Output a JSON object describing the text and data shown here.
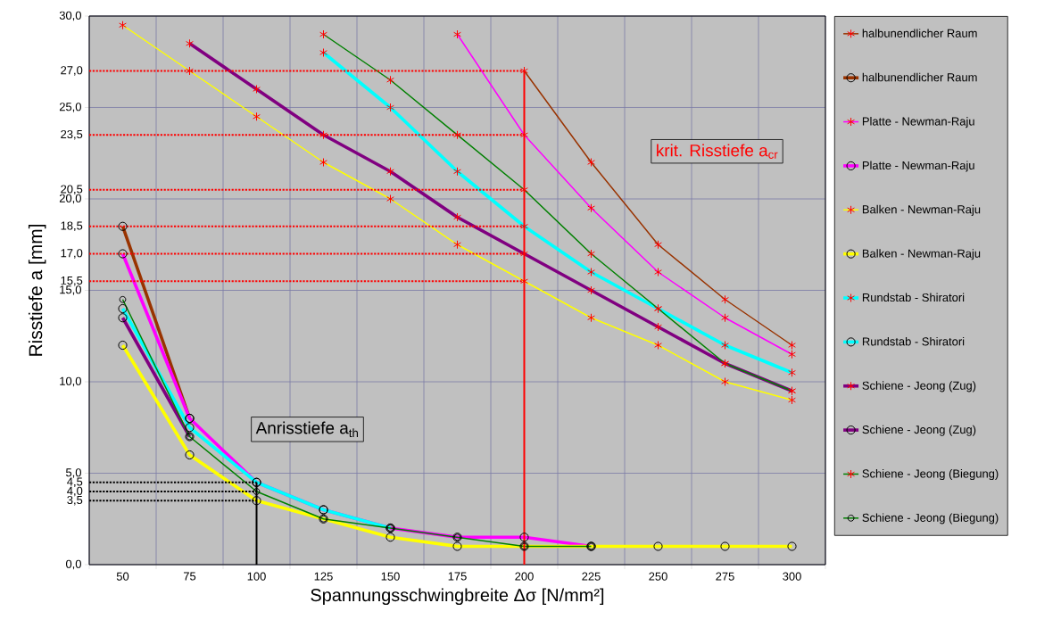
{
  "chart_data": {
    "type": "line",
    "xlabel": "Spannungsschwingbreite Δσ [N/mm²]",
    "ylabel": "Risstiefe a [mm]",
    "x": [
      50,
      75,
      100,
      125,
      150,
      175,
      200,
      225,
      250,
      275,
      300
    ],
    "xlim": [
      37.5,
      312.5
    ],
    "xticks": [
      50,
      75,
      100,
      125,
      150,
      175,
      200,
      225,
      250,
      275,
      300
    ],
    "ylim": [
      0,
      30
    ],
    "yticks": [
      {
        "value": 0,
        "label": "0,0"
      },
      {
        "value": 5,
        "label": "5,0"
      },
      {
        "value": 10,
        "label": "10,0"
      },
      {
        "value": 15,
        "label": "15,0"
      },
      {
        "value": 20,
        "label": "20,0"
      },
      {
        "value": 25,
        "label": "25,0"
      },
      {
        "value": 30,
        "label": "30,0"
      }
    ],
    "grid": true,
    "legend": "right",
    "series": [
      {
        "name": "halbunendlicher Raum",
        "color": "#993300",
        "marker": "cross",
        "values": [
          null,
          null,
          null,
          null,
          null,
          null,
          27.0,
          22.0,
          17.5,
          14.5,
          12.0
        ]
      },
      {
        "name": "halbunendlicher Raum",
        "color": "#993300",
        "marker": "circle",
        "values": [
          18.5,
          8.0,
          null,
          null,
          null,
          null,
          null,
          null,
          null,
          null,
          null
        ]
      },
      {
        "name": "Platte - Newman-Raju",
        "color": "#ff00ff",
        "marker": "cross",
        "values": [
          null,
          null,
          null,
          null,
          null,
          29.0,
          23.5,
          19.5,
          16.0,
          13.5,
          11.5
        ]
      },
      {
        "name": "Platte - Newman-Raju",
        "color": "#ff00ff",
        "marker": "circle",
        "values": [
          17.0,
          8.0,
          4.5,
          3.0,
          2.0,
          1.5,
          1.5,
          1.0,
          null,
          null,
          null
        ]
      },
      {
        "name": "Balken - Newman-Raju",
        "color": "#ffff00",
        "marker": "cross",
        "values": [
          29.5,
          27.0,
          24.5,
          22.0,
          20.0,
          17.5,
          15.5,
          13.5,
          12.0,
          10.0,
          9.0
        ]
      },
      {
        "name": "Balken - Newman-Raju",
        "color": "#ffff00",
        "marker": "circle",
        "values": [
          12.0,
          6.0,
          3.5,
          2.5,
          1.5,
          1.0,
          1.0,
          1.0,
          1.0,
          1.0,
          1.0
        ]
      },
      {
        "name": "Rundstab - Shiratori",
        "color": "#00ffff",
        "marker": "cross",
        "values": [
          null,
          null,
          null,
          28.0,
          25.0,
          21.5,
          18.5,
          16.0,
          14.0,
          12.0,
          10.5
        ]
      },
      {
        "name": "Rundstab - Shiratori",
        "color": "#00ffff",
        "marker": "circle",
        "values": [
          14.0,
          7.5,
          4.5,
          3.0,
          2.0,
          null,
          null,
          null,
          null,
          null,
          null
        ]
      },
      {
        "name": "Schiene - Jeong (Zug)",
        "color": "#800080",
        "marker": "cross",
        "values": [
          null,
          28.5,
          26.0,
          23.5,
          21.5,
          19.0,
          17.0,
          15.0,
          13.0,
          11.0,
          9.5
        ]
      },
      {
        "name": "Schiene - Jeong (Zug)",
        "color": "#800080",
        "marker": "circle",
        "values": [
          13.5,
          7.0,
          null,
          null,
          null,
          null,
          null,
          null,
          null,
          null,
          null
        ]
      },
      {
        "name": "Schiene - Jeong (Biegung)",
        "color": "#008000",
        "marker": "cross",
        "values": [
          null,
          null,
          null,
          29.0,
          26.5,
          23.5,
          20.5,
          17.0,
          14.0,
          11.0,
          9.5
        ]
      },
      {
        "name": "Schiene - Jeong (Biegung)",
        "color": "#008000",
        "marker": "circle",
        "values": [
          14.5,
          7.0,
          4.0,
          2.5,
          2.0,
          1.5,
          1.0,
          1.0,
          null,
          null,
          null
        ]
      }
    ],
    "ref_lines": [
      {
        "axis": "y",
        "value": 27.0,
        "label": "27,0",
        "color": "#ff0000",
        "line_style": "dotted"
      },
      {
        "axis": "y",
        "value": 23.5,
        "label": "23,5",
        "color": "#ff0000",
        "line_style": "dotted"
      },
      {
        "axis": "y",
        "value": 20.5,
        "label": "20,5",
        "color": "#ff0000",
        "line_style": "dotted"
      },
      {
        "axis": "y",
        "value": 18.5,
        "label": "18,5",
        "color": "#ff0000",
        "line_style": "dotted"
      },
      {
        "axis": "y",
        "value": 17.0,
        "label": "17,0",
        "color": "#ff0000",
        "line_style": "dotted"
      },
      {
        "axis": "y",
        "value": 15.5,
        "label": "15,5",
        "color": "#ff0000",
        "line_style": "dotted"
      },
      {
        "axis": "y",
        "value": 4.5,
        "label": "4,5",
        "color": "#000000",
        "line_style": "dotted"
      },
      {
        "axis": "y",
        "value": 4.0,
        "label": "4,0",
        "color": "#000000",
        "line_style": "dotted"
      },
      {
        "axis": "y",
        "value": 3.5,
        "label": "3,5",
        "color": "#000000",
        "line_style": "dotted"
      },
      {
        "axis": "x",
        "value": 200,
        "color": "#ff0000",
        "line_style": "solid"
      },
      {
        "axis": "x",
        "value": 100,
        "color": "#000000",
        "line_style": "solid"
      }
    ],
    "annotations": [
      "krit. Risstiefe a$_{cr}$",
      "Anrisstiefe a$_{th}$"
    ]
  }
}
